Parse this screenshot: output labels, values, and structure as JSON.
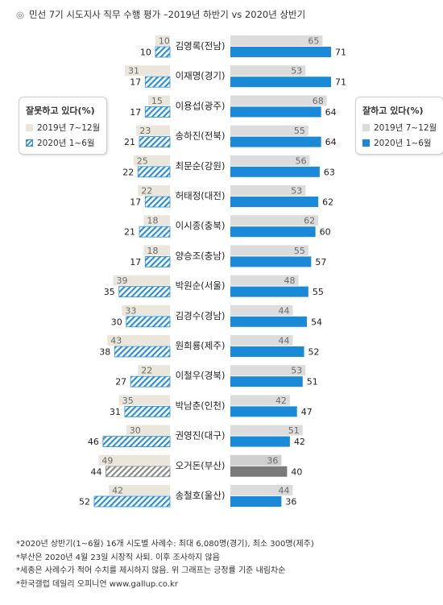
{
  "title": "민선 7기 시도지사 직무 수행 평가 –2019년 하반기 vs 2020년 상반기",
  "title_mark": "◎",
  "legend_left": {
    "title": "잘못하고 있다(%)",
    "items": [
      "2019년 7~12월",
      "2020년 1~6월"
    ]
  },
  "legend_right": {
    "title": "잘하고 있다(%)",
    "items": [
      "2019년 7~12월",
      "2020년 1~6월"
    ]
  },
  "notes": [
    "*2020년 상반기(1~6월) 16개 시도별 사례수: 최대 6,080명(경기), 최소 300명(제주)",
    "*부산은 2020년 4월 23일 시장직 사퇴. 이후 조사하지 않음",
    "*세종은 사례수가 적어 수치를 제시하지 않음. 위 그래프는 긍정률 기준 내림차순",
    "*한국갤럽 데일리 오피니언 www.gallup.co.kr"
  ],
  "colors": {
    "positive_2019": "#dcdcdc",
    "positive_2020": "#1a8ad8",
    "negative_2019": "#eae6db",
    "negative_2020_hatch": "#2d8fd8",
    "busan_2019": "#cfcfcf",
    "busan_2020": "#7a7a7a",
    "busan_hatch": "#8a8a8a"
  },
  "chart_data": {
    "type": "bar",
    "orientation": "horizontal-diverging",
    "categories": [
      "김영록(전남)",
      "이재명(경기)",
      "이용섭(광주)",
      "송하진(전북)",
      "최문순(강원)",
      "허태정(대전)",
      "이시종(충북)",
      "양승조(충남)",
      "박원순(서울)",
      "김경수(경남)",
      "원희룡(제주)",
      "이철우(경북)",
      "박남춘(인천)",
      "권영진(대구)",
      "오거돈(부산)",
      "송철호(울산)"
    ],
    "series": [
      {
        "name": "잘하고 있다 2019년 7~12월",
        "values": [
          65,
          53,
          68,
          55,
          56,
          53,
          62,
          55,
          48,
          44,
          44,
          53,
          42,
          51,
          36,
          44
        ]
      },
      {
        "name": "잘하고 있다 2020년 1~6월",
        "values": [
          71,
          71,
          64,
          64,
          63,
          62,
          60,
          57,
          55,
          54,
          52,
          51,
          47,
          42,
          40,
          36
        ]
      },
      {
        "name": "잘못하고 있다 2019년 7~12월",
        "values": [
          10,
          31,
          15,
          23,
          25,
          22,
          18,
          18,
          39,
          33,
          43,
          22,
          35,
          30,
          49,
          42
        ]
      },
      {
        "name": "잘못하고 있다 2020년 1~6월",
        "values": [
          10,
          17,
          17,
          21,
          22,
          17,
          21,
          17,
          35,
          30,
          38,
          27,
          31,
          46,
          44,
          52
        ]
      }
    ]
  }
}
